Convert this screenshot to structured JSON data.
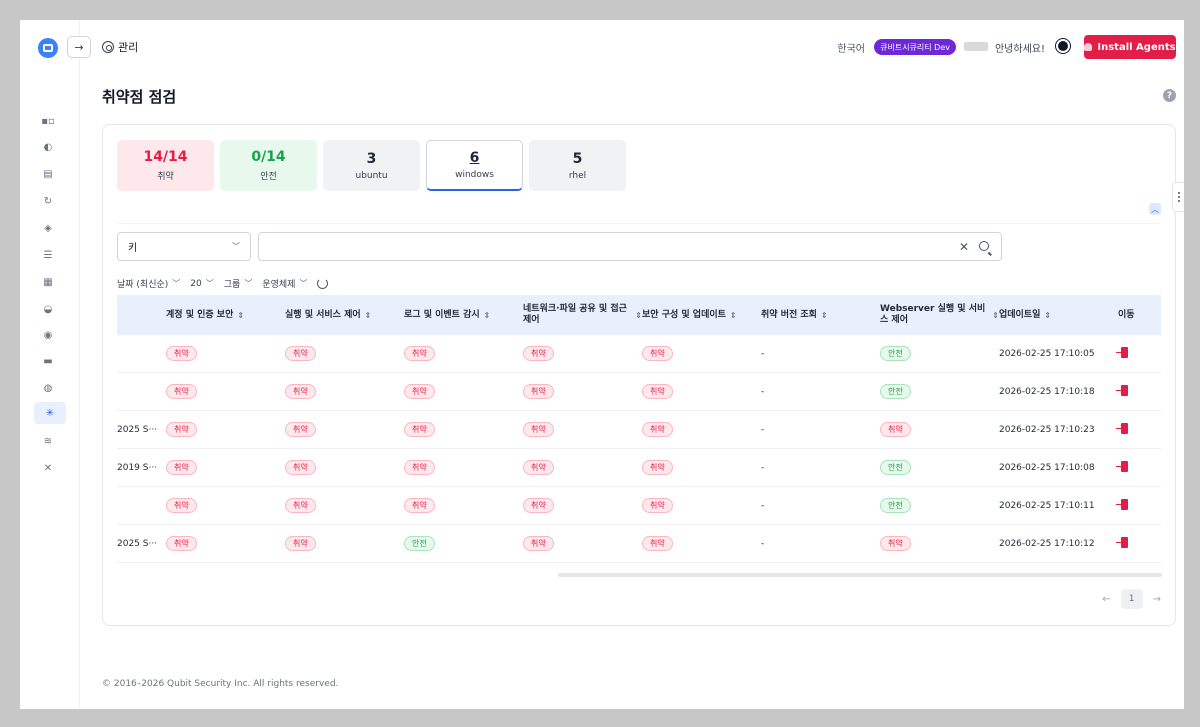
{
  "header": {
    "section": "관리",
    "language": "한국어",
    "org": "큐비트시큐리티 Dev",
    "greeting": "안녕하세요!",
    "install_label": "Install Agents"
  },
  "page": {
    "title": "취약점 점검",
    "help": "?"
  },
  "stats": [
    {
      "value": "14/14",
      "label": "취약"
    },
    {
      "value": "0/14",
      "label": "안전"
    },
    {
      "value": "3",
      "label": "ubuntu"
    },
    {
      "value": "6",
      "label": "windows"
    },
    {
      "value": "5",
      "label": "rhel"
    }
  ],
  "search": {
    "key_label": "키",
    "placeholder": ""
  },
  "filters": {
    "sort": "날짜 (최신순)",
    "page_size": "20",
    "group": "그룹",
    "os": "운영체제"
  },
  "columns": [
    "계정 및 인증 보안",
    "실행 및 서비스 제어",
    "로그 및 이벤트 감시",
    "네트워크·파일 공유 및 접근 제어",
    "보안 구성 및 업데이트",
    "취약 버전 조회",
    "Webserver 실행 및 서비스 제어",
    "업데이트일",
    "이동"
  ],
  "rows": [
    {
      "name": "",
      "c1": "취약",
      "c2": "취약",
      "c3": "취약",
      "c4": "취약",
      "c5": "취약",
      "version": "-",
      "c7": "안전",
      "updated": "2026-02-25 17:10:05"
    },
    {
      "name": "",
      "c1": "취약",
      "c2": "취약",
      "c3": "취약",
      "c4": "취약",
      "c5": "취약",
      "version": "-",
      "c7": "안전",
      "updated": "2026-02-25 17:10:18"
    },
    {
      "name": "2025 S···",
      "c1": "취약",
      "c2": "취약",
      "c3": "취약",
      "c4": "취약",
      "c5": "취약",
      "version": "-",
      "c7": "취약",
      "updated": "2026-02-25 17:10:23"
    },
    {
      "name": "2019 S···",
      "c1": "취약",
      "c2": "취약",
      "c3": "취약",
      "c4": "취약",
      "c5": "취약",
      "version": "-",
      "c7": "안전",
      "updated": "2026-02-25 17:10:08"
    },
    {
      "name": "",
      "c1": "취약",
      "c2": "취약",
      "c3": "취약",
      "c4": "취약",
      "c5": "취약",
      "version": "-",
      "c7": "안전",
      "updated": "2026-02-25 17:10:11"
    },
    {
      "name": "2025 S···",
      "c1": "취약",
      "c2": "취약",
      "c3": "안전",
      "c4": "취약",
      "c5": "취약",
      "version": "-",
      "c7": "취약",
      "updated": "2026-02-25 17:10:12"
    }
  ],
  "pagination": {
    "current": "1",
    "prev": "←",
    "next": "→"
  },
  "footer": "© 2016–2026 Qubit Security Inc. All rights reserved.",
  "colors": {
    "danger": "#e11d48",
    "safe": "#16a34a",
    "accent": "#2563eb",
    "org_badge": "#6d28d9"
  }
}
